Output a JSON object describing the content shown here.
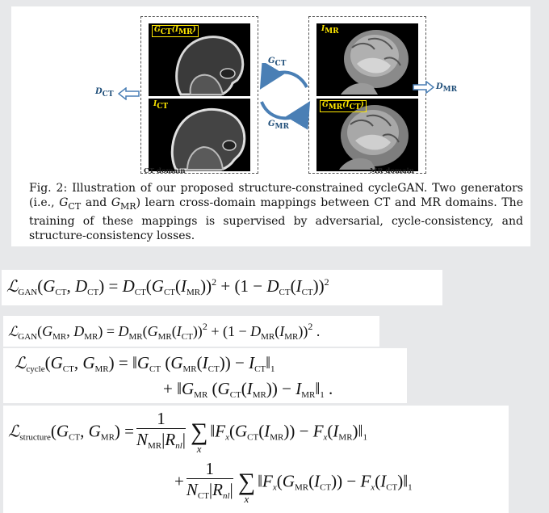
{
  "figure": {
    "scans": {
      "g_ct_i_mr": "G",
      "g_ct_i_mr_sub": "CT",
      "g_ct_i_mr_rest": "(I",
      "g_ct_i_mr_sub2": "MR",
      "g_ct_i_mr_close": ")",
      "i_ct": "I",
      "i_ct_sub": "CT",
      "i_mr": "I",
      "i_mr_sub": "MR",
      "g_mr_i_ct": "G",
      "g_mr_i_ct_sub": "MR",
      "g_mr_i_ct_rest": "(I",
      "g_mr_i_ct_sub2": "CT",
      "g_mr_i_ct_close": ")"
    },
    "arrows": {
      "g_ct": "G",
      "g_ct_sub": "CT",
      "g_mr": "G",
      "g_mr_sub": "MR",
      "d_ct": "D",
      "d_ct_sub": "CT",
      "d_mr": "D",
      "d_mr_sub": "MR"
    },
    "ct_domain_label": "CT domain",
    "mr_domain_label": "MR domain",
    "caption": "Fig. 2: Illustration of our proposed structure-constrained cycleGAN. Two generators (i.e., G_CT and G_MR) learn cross-domain mappings between CT and MR domains. The training of these mappings is supervised by adversarial, cycle-consistency, and structure-consistency losses.",
    "caption_parts": {
      "a": "Fig. 2: Illustration of our proposed structure-constrained cycleGAN. Two generators (i.e., ",
      "g1": "G",
      "g1s": "CT",
      "and": " and ",
      "g2": "G",
      "g2s": "MR",
      "b": ") learn cross-domain mappings between CT and MR domains. The training of these mappings is supervised by adversarial, cycle-consistency, and structure-consistency losses."
    },
    "colors": {
      "scan_label": "#ffe800",
      "arrow": "#1f4e79",
      "cycle_arrow": "#4a7fb5"
    }
  },
  "equations": {
    "eq1": "L_GAN(G_CT, D_CT) = D_CT(G_CT(I_MR))^2 + (1 − D_CT(I_CT))^2",
    "eq2": "L_GAN(G_MR, D_MR) = D_MR(G_MR(I_CT))^2 + (1 − D_MR(I_MR))^2 .",
    "eq3_line1": "L_cycle(G_CT, G_MR) = ||G_CT (G_MR(I_CT)) − I_CT||_1",
    "eq3_line2": "+ ||G_MR (G_CT(I_MR)) − I_MR||_1 .",
    "eq4_line1": "L_structure(G_CT, G_MR) = 1/(N_MR|R_nl|) Σ_x ||F_x(G_CT(I_MR)) − F_x(I_MR)||_1",
    "eq4_line2": "+ 1/(N_CT|R_nl|) Σ_x ||F_x(G_MR(I_CT)) − F_x(I_CT)||_1"
  }
}
